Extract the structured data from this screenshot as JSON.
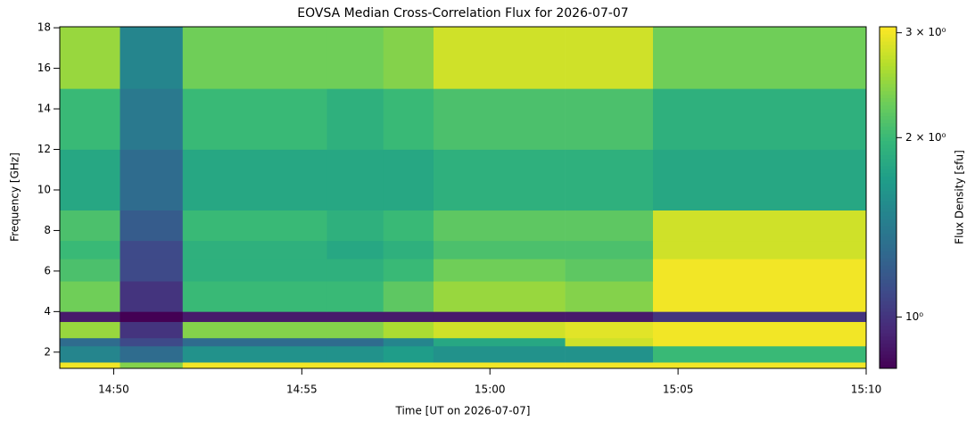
{
  "chart_data": {
    "type": "heatmap",
    "title": "EOVSA Median Cross-Correlation Flux for 2026-07-07",
    "x_label": "Time [UT on 2026-07-07]",
    "y_label": "Frequency [GHz]",
    "colorbar_label": "Flux Density [sfu]",
    "colormap": "viridis",
    "color_scale": "log",
    "xlim": [
      "14:48:34",
      "15:10:00"
    ],
    "xticks": [
      "14:50",
      "14:55",
      "15:00",
      "15:05",
      "15:10"
    ],
    "ylim": [
      1.2,
      18.05
    ],
    "yticks": [
      2,
      4,
      6,
      8,
      10,
      12,
      14,
      16,
      18
    ],
    "clim": [
      0.82,
      3.07
    ],
    "cticks": [
      {
        "value": 1,
        "label": "10⁰"
      },
      {
        "value": 2,
        "label": "2 × 10⁰"
      },
      {
        "value": 3,
        "label": "3 × 10⁰"
      }
    ],
    "x_edges": [
      "14:48:34",
      "14:50:10",
      "14:51:50",
      "14:55:40",
      "14:57:10",
      "14:58:30",
      "15:02:00",
      "15:04:20",
      "15:10:00"
    ],
    "y_edges": [
      1.2,
      1.5,
      2.3,
      2.7,
      3.5,
      4.0,
      5.5,
      6.6,
      7.5,
      9.0,
      12,
      15,
      18.05
    ],
    "values": [
      [
        3.0,
        2.4,
        3.0,
        3.0,
        3.0,
        3.0,
        3.0,
        3.0
      ],
      [
        1.5,
        1.3,
        1.6,
        1.6,
        1.7,
        1.6,
        1.6,
        2.0
      ],
      [
        1.3,
        1.1,
        1.3,
        1.3,
        1.5,
        1.8,
        2.8,
        3.0
      ],
      [
        2.5,
        1.0,
        2.4,
        2.4,
        2.6,
        2.8,
        2.9,
        3.0
      ],
      [
        0.9,
        0.8,
        0.9,
        0.9,
        0.9,
        0.9,
        0.9,
        1.0
      ],
      [
        2.3,
        1.0,
        2.0,
        2.0,
        2.2,
        2.5,
        2.4,
        3.0
      ],
      [
        2.1,
        1.1,
        1.9,
        1.9,
        2.0,
        2.3,
        2.2,
        3.0
      ],
      [
        2.0,
        1.1,
        1.9,
        1.8,
        1.9,
        2.1,
        2.1,
        2.8
      ],
      [
        2.1,
        1.2,
        2.0,
        1.9,
        2.0,
        2.2,
        2.2,
        2.8
      ],
      [
        1.8,
        1.3,
        1.8,
        1.8,
        1.8,
        1.9,
        1.9,
        1.8
      ],
      [
        2.0,
        1.4,
        2.0,
        1.9,
        2.0,
        2.1,
        2.1,
        1.9
      ],
      [
        2.5,
        1.5,
        2.3,
        2.3,
        2.4,
        2.8,
        2.8,
        2.3
      ]
    ]
  }
}
